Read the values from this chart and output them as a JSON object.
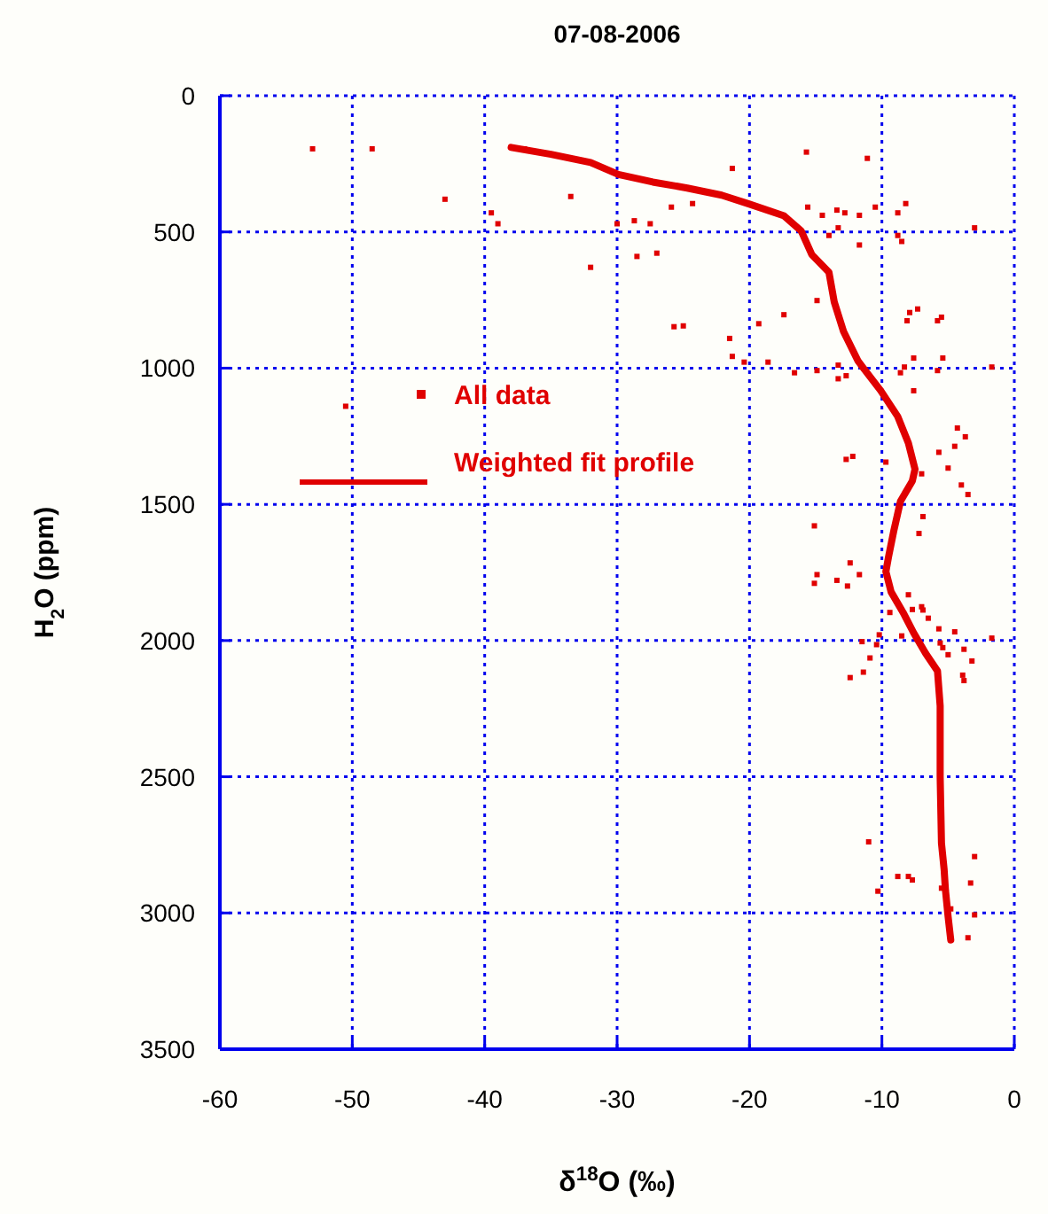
{
  "chart_data": {
    "type": "scatter",
    "title": "07-08-2006",
    "xlabel": "δ$^{18}$O (‰)",
    "ylabel": "H$_{2}$O (ppm)",
    "xlim": [
      -60,
      0
    ],
    "xticks": [
      -60,
      -50,
      -40,
      -30,
      -20,
      -10,
      0
    ],
    "ylim": [
      3500,
      0
    ],
    "yticks": [
      0,
      500,
      1000,
      1500,
      2000,
      2500,
      3000,
      3500
    ],
    "grid": true,
    "legend": "left",
    "series": [
      {
        "name": "All data",
        "color": "#e00000",
        "marker": "square",
        "x": [
          -53,
          -48.5,
          -43,
          -39.5,
          -39,
          -37,
          -33.5,
          -32,
          -30,
          -28.5,
          -25,
          -50.5,
          -15.7,
          -11.1,
          -21.3,
          -28.7,
          -27.5,
          -27,
          -25.9,
          -24.3,
          -15.6,
          -14.5,
          -13.4,
          -12.8,
          -11.7,
          -10.5,
          -8.8,
          -8.2,
          -13.3,
          -14,
          -11.7,
          -8.8,
          -8.5,
          -3,
          -14.9,
          -17.4,
          -25.7,
          -19.3,
          -21.5,
          -21.3,
          -20.4,
          -18.6,
          -16.6,
          -14.9,
          -13.3,
          -13.3,
          -12.7,
          -7.9,
          -7.3,
          -8.1,
          -5.8,
          -5.5,
          -7.6,
          -5.4,
          -8.3,
          -8.6,
          -5.8,
          -1.7,
          -7.6,
          -4.3,
          -3.7,
          -5.7,
          -4.5,
          -12.7,
          -12.2,
          -9.7,
          -5,
          -7,
          -4,
          -3.5,
          -6.9,
          -7.2,
          -15.1,
          -12.4,
          -11.7,
          -14.9,
          -15.1,
          -13.4,
          -12.6,
          -8,
          -9.4,
          -7.7,
          -7,
          -6.9,
          -6.5,
          -5.7,
          -4.5,
          -8.5,
          -1.7,
          -10.2,
          -11.5,
          -10.4,
          -5.6,
          -5.4,
          -3.8,
          -5,
          -3.2,
          -10.9,
          -11.4,
          -3.9,
          -12.4,
          -3.8,
          -11,
          -10.3,
          -8.8,
          -8,
          -7.7,
          -3,
          -3.3,
          -4.8,
          -3,
          -3.5,
          -5.5
        ],
        "values": [
          195,
          195,
          380,
          430,
          470,
          195,
          370,
          630,
          470,
          590,
          845,
          1140,
          207,
          230,
          267,
          459,
          470,
          578,
          409,
          396,
          409,
          439,
          420,
          430,
          439,
          409,
          430,
          396,
          485,
          513,
          548,
          513,
          535,
          485,
          752,
          804,
          848,
          837,
          891,
          957,
          978,
          978,
          1017,
          1009,
          989,
          1039,
          1028,
          796,
          783,
          826,
          826,
          813,
          963,
          963,
          996,
          1017,
          1009,
          996,
          1083,
          1220,
          1252,
          1309,
          1287,
          1335,
          1324,
          1345,
          1367,
          1388,
          1429,
          1464,
          1545,
          1607,
          1579,
          1715,
          1758,
          1758,
          1790,
          1779,
          1800,
          1832,
          1897,
          1886,
          1876,
          1888,
          1918,
          1957,
          1968,
          1983,
          1991,
          1979,
          2004,
          2015,
          2009,
          2026,
          2032,
          2052,
          2075,
          2064,
          2116,
          2127,
          2136,
          2147,
          2739,
          2920,
          2866,
          2866,
          2879,
          2793,
          2890,
          2985,
          3007,
          3091,
          2909
        ]
      },
      {
        "name": "Weighted fit profile",
        "type": "line",
        "color": "#e00000",
        "marker": "none",
        "line_style": "solid",
        "x": [
          -38,
          -35,
          -32,
          -29.9,
          -27.3,
          -24.7,
          -22.1,
          -20,
          -17.4,
          -16.1,
          -15.3,
          -14,
          -13.6,
          -12.9,
          -11.8,
          -11.4,
          -10.1,
          -8.8,
          -8,
          -7.5,
          -7.7,
          -8.6,
          -9.1,
          -9.5,
          -9.7,
          -9.3,
          -8.4,
          -7.6,
          -6.7,
          -5.8,
          -5.6,
          -5.6,
          -5.5,
          -5.3,
          -5.2,
          -5,
          -4.8
        ],
        "values": [
          190,
          215,
          245,
          289,
          317,
          339,
          365,
          398,
          441,
          496,
          583,
          648,
          757,
          865,
          974,
          1000,
          1082,
          1178,
          1275,
          1371,
          1414,
          1489,
          1597,
          1693,
          1747,
          1822,
          1897,
          1972,
          2047,
          2112,
          2240,
          2500,
          2744,
          2841,
          2916,
          3013,
          3099
        ]
      }
    ]
  }
}
